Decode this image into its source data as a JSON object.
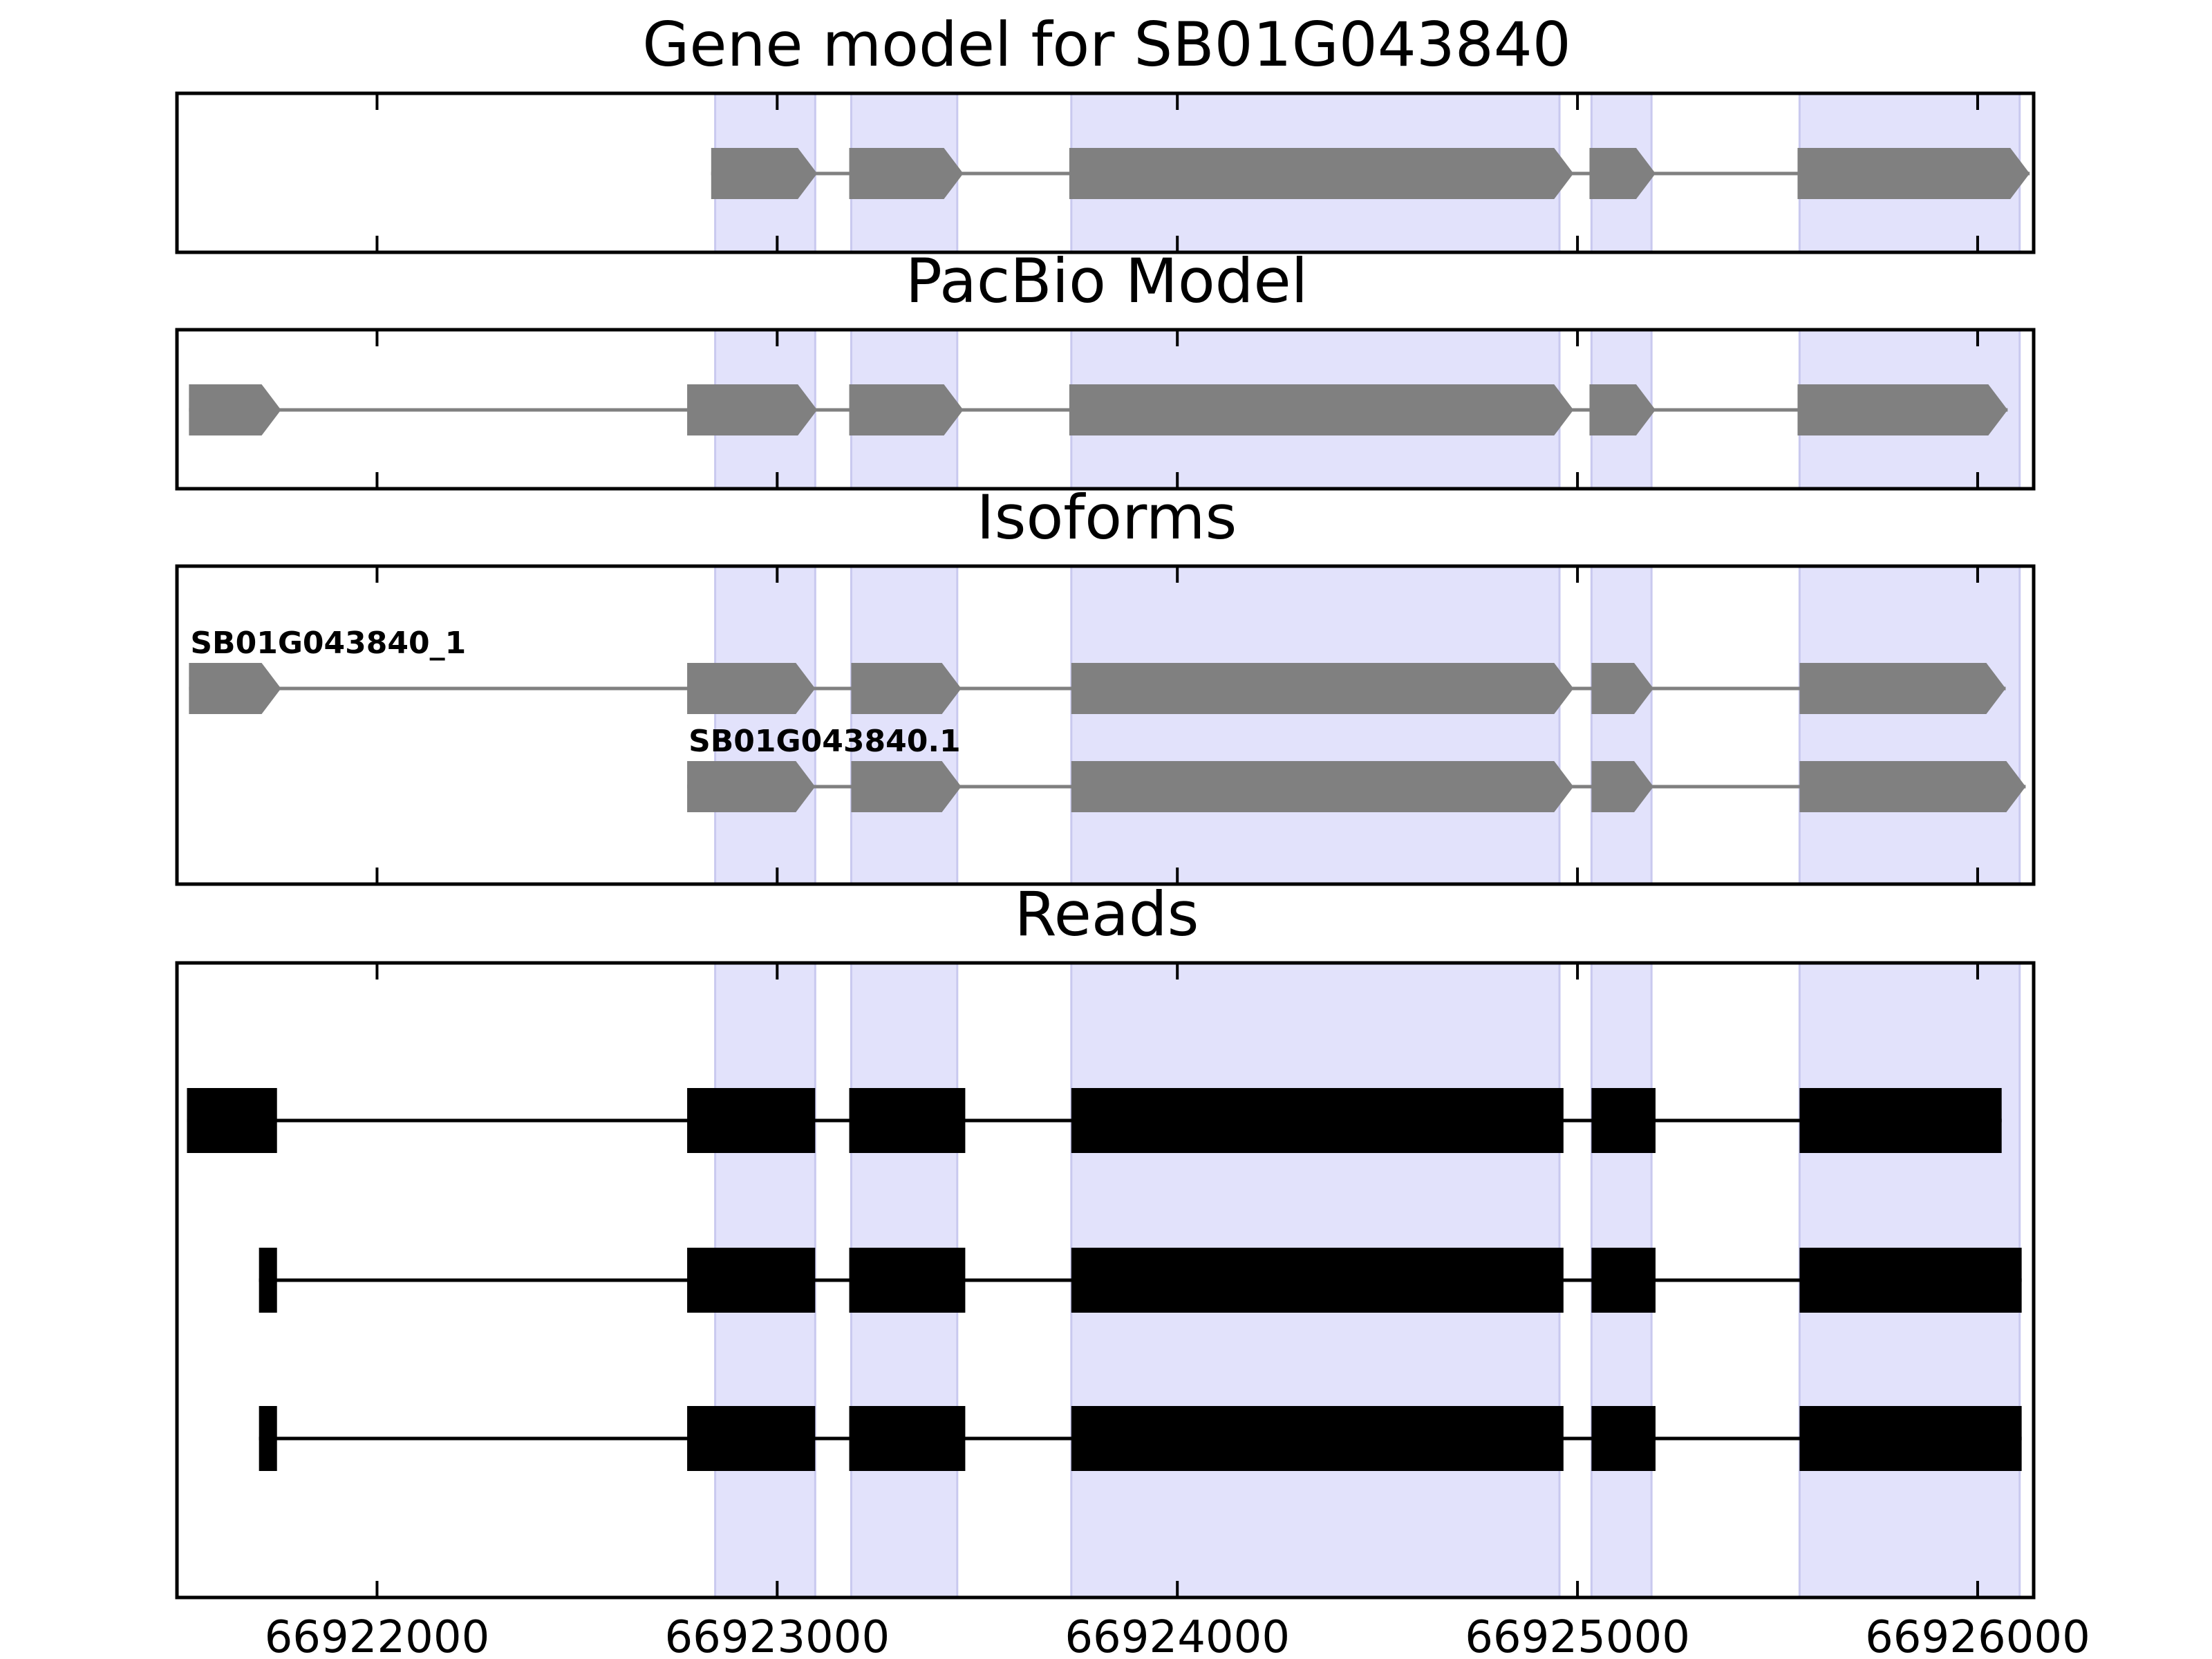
{
  "chart_data": {
    "type": "gene-structure",
    "xlim": [
      66921500,
      66926140
    ],
    "xticks": [
      66922000,
      66923000,
      66924000,
      66925000,
      66926000
    ],
    "tick_labels": [
      "66922000",
      "66923000",
      "66924000",
      "66925000",
      "66926000"
    ],
    "colors": {
      "feature": "#808080",
      "read": "#000000",
      "highlight": "#e2e2fb",
      "highlight_edge": "#c9c9ef",
      "axes": "#000000"
    },
    "highlighted_exons": [
      [
        66922845,
        66923095
      ],
      [
        66923185,
        66923450
      ],
      [
        66923735,
        66924955
      ],
      [
        66925035,
        66925185
      ],
      [
        66925555,
        66926105
      ]
    ],
    "panels": [
      {
        "title": "Gene model for SB01G043840",
        "tracks": [
          {
            "label": "",
            "style": "arrow",
            "exons": [
              [
                66922835,
                66923100
              ],
              [
                66923180,
                66923465
              ],
              [
                66923730,
                66924990
              ],
              [
                66925030,
                66925195
              ],
              [
                66925550,
                66926130
              ]
            ]
          }
        ]
      },
      {
        "title": "PacBio Model",
        "tracks": [
          {
            "label": "",
            "style": "arrow",
            "exons": [
              [
                66921530,
                66921760
              ],
              [
                66922775,
                66923100
              ],
              [
                66923180,
                66923465
              ],
              [
                66923730,
                66924990
              ],
              [
                66925030,
                66925195
              ],
              [
                66925550,
                66926075
              ]
            ]
          }
        ]
      },
      {
        "title": "Isoforms",
        "tracks": [
          {
            "label": "SB01G043840_1",
            "style": "arrow",
            "exons": [
              [
                66921530,
                66921760
              ],
              [
                66922775,
                66923095
              ],
              [
                66923185,
                66923460
              ],
              [
                66923735,
                66924990
              ],
              [
                66925035,
                66925190
              ],
              [
                66925555,
                66926070
              ]
            ]
          },
          {
            "label": "SB01G043840.1",
            "style": "arrow",
            "exons": [
              [
                66922775,
                66923095
              ],
              [
                66923185,
                66923460
              ],
              [
                66923735,
                66924990
              ],
              [
                66925035,
                66925190
              ],
              [
                66925555,
                66926120
              ]
            ]
          }
        ]
      },
      {
        "title": "Reads",
        "tracks": [
          {
            "label": "",
            "style": "block",
            "exons": [
              [
                66921525,
                66921750
              ],
              [
                66922775,
                66923095
              ],
              [
                66923180,
                66923470
              ],
              [
                66923735,
                66924965
              ],
              [
                66925035,
                66925195
              ],
              [
                66925555,
                66926060
              ]
            ]
          },
          {
            "label": "",
            "style": "block",
            "exons": [
              [
                66921705,
                66921750
              ],
              [
                66922775,
                66923095
              ],
              [
                66923180,
                66923470
              ],
              [
                66923735,
                66924965
              ],
              [
                66925035,
                66925195
              ],
              [
                66925555,
                66926110
              ]
            ]
          },
          {
            "label": "",
            "style": "block",
            "exons": [
              [
                66921705,
                66921750
              ],
              [
                66922775,
                66923095
              ],
              [
                66923180,
                66923470
              ],
              [
                66923735,
                66924965
              ],
              [
                66925035,
                66925195
              ],
              [
                66925555,
                66926110
              ]
            ]
          }
        ]
      }
    ]
  }
}
